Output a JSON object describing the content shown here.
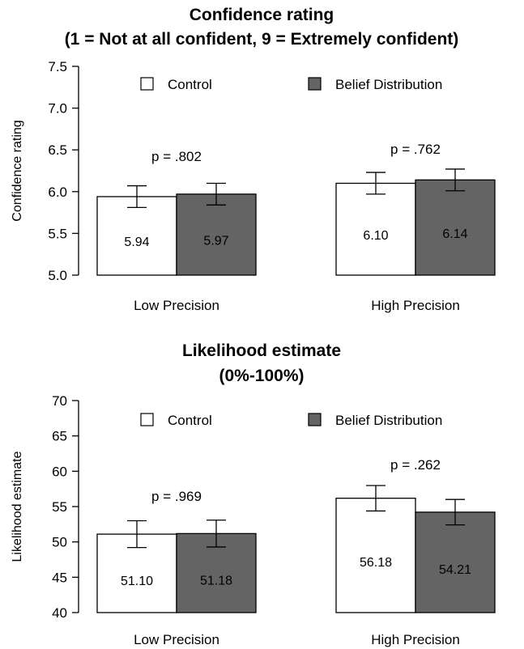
{
  "colors": {
    "control": "#ffffff",
    "belief": "#646464",
    "stroke": "#000000"
  },
  "chart_data": [
    {
      "type": "bar",
      "title": "Confidence rating",
      "subtitle": "(1 = Not at all confident, 9 = Extremely confident)",
      "ylabel": "Confidence rating",
      "xlabel": "",
      "ylim": [
        5.0,
        7.5
      ],
      "yticks": [
        "5.0",
        "5.5",
        "6.0",
        "6.5",
        "7.0",
        "7.5"
      ],
      "grid": false,
      "legend_position": "top",
      "categories": [
        "Low Precision",
        "High Precision"
      ],
      "series": [
        {
          "name": "Control",
          "values": [
            5.94,
            6.1
          ],
          "value_labels": [
            "5.94",
            "6.10"
          ],
          "error": [
            0.13,
            0.13
          ]
        },
        {
          "name": "Belief Distribution",
          "values": [
            5.97,
            6.14
          ],
          "value_labels": [
            "5.97",
            "6.14"
          ],
          "error": [
            0.13,
            0.13
          ]
        }
      ],
      "annotations": [
        "p = .802",
        "p = .762"
      ]
    },
    {
      "type": "bar",
      "title": "Likelihood estimate",
      "subtitle": "(0%-100%)",
      "ylabel": "Likelihood estimate",
      "xlabel": "",
      "ylim": [
        40,
        70
      ],
      "yticks": [
        "40",
        "45",
        "50",
        "55",
        "60",
        "65",
        "70"
      ],
      "grid": false,
      "legend_position": "top",
      "categories": [
        "Low Precision",
        "High Precision"
      ],
      "series": [
        {
          "name": "Control",
          "values": [
            51.1,
            56.18
          ],
          "value_labels": [
            "51.10",
            "56.18"
          ],
          "error": [
            1.9,
            1.8
          ]
        },
        {
          "name": "Belief Distribution",
          "values": [
            51.18,
            54.21
          ],
          "value_labels": [
            "51.18",
            "54.21"
          ],
          "error": [
            1.9,
            1.8
          ]
        }
      ],
      "annotations": [
        "p = .969",
        "p = .262"
      ]
    }
  ]
}
